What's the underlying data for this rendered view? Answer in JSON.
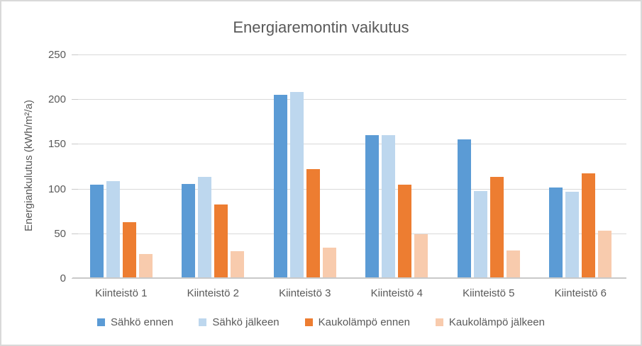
{
  "chart_data": {
    "type": "bar",
    "title": "Energiaremontin vaikutus",
    "xlabel": "",
    "ylabel": "Energiankulutus (kWh/m²/a)",
    "categories": [
      "Kiinteistö 1",
      "Kiinteistö 2",
      "Kiinteistö 3",
      "Kiinteistö 4",
      "Kiinteistö 5",
      "Kiinteistö 6"
    ],
    "series": [
      {
        "name": "Sähkö ennen",
        "color": "#5B9BD5",
        "values": [
          105,
          106,
          206,
          161,
          156,
          102
        ]
      },
      {
        "name": "Sähkö jälkeen",
        "color": "#BDD7EE",
        "values": [
          109,
          114,
          209,
          161,
          98,
          97
        ]
      },
      {
        "name": "Kaukolämpö ennen",
        "color": "#ED7D31",
        "values": [
          63,
          83,
          123,
          105,
          114,
          118
        ]
      },
      {
        "name": "Kaukolämpö jälkeen",
        "color": "#F8CBAD",
        "values": [
          28,
          31,
          35,
          50,
          32,
          54
        ]
      }
    ],
    "ylim": [
      0,
      250
    ],
    "yticks": [
      0,
      50,
      100,
      150,
      200,
      250
    ],
    "grid": true,
    "legend_position": "bottom"
  },
  "colors": {
    "background": "#FFFFFF",
    "border": "#D9D9D9",
    "text": "#595959",
    "gridline": "#D9D9D9",
    "axis_line": "#C9C9C9"
  }
}
